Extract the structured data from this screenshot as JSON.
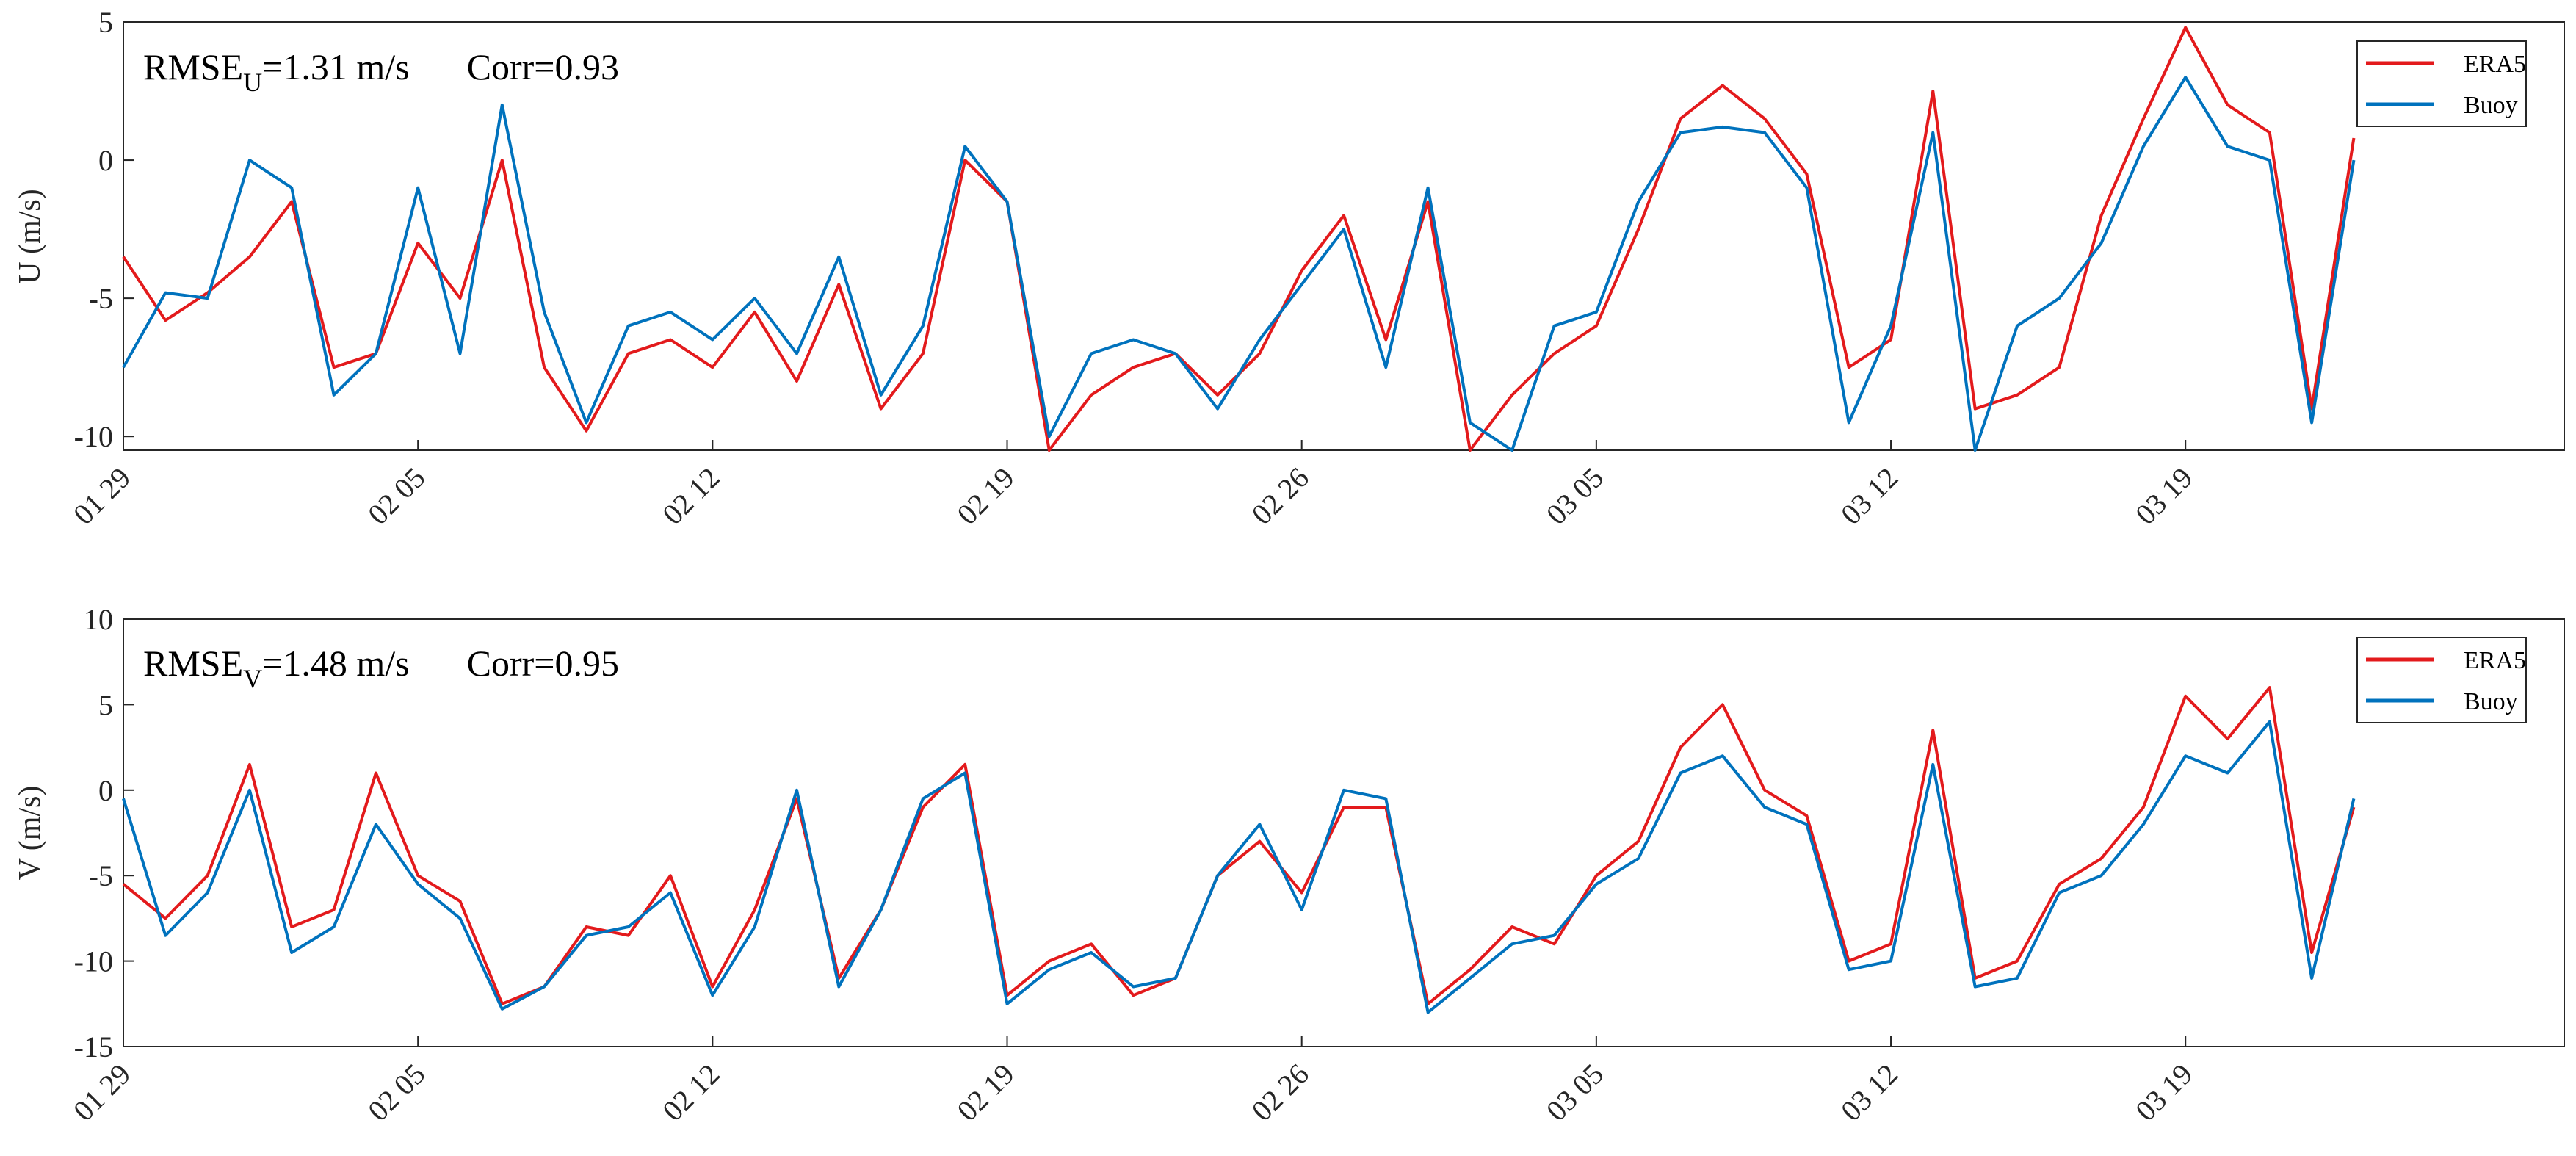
{
  "colors": {
    "era5": "#e31a1c",
    "buoy": "#0072bd"
  },
  "chart_data": [
    {
      "type": "line",
      "ylabel": "U (m/s)",
      "ylim": [
        -10.5,
        5
      ],
      "yticks": [
        -10,
        -5,
        0,
        5
      ],
      "x_date_range": [
        "01-29",
        "03-28"
      ],
      "xticks": [
        {
          "date": "01-29",
          "label": "01 29"
        },
        {
          "date": "02-05",
          "label": "02 05"
        },
        {
          "date": "02-12",
          "label": "02 12"
        },
        {
          "date": "02-19",
          "label": "02 19"
        },
        {
          "date": "02-26",
          "label": "02 26"
        },
        {
          "date": "03-05",
          "label": "03 05"
        },
        {
          "date": "03-12",
          "label": "03 12"
        },
        {
          "date": "03-19",
          "label": "03 19"
        }
      ],
      "annotation": {
        "rmse_prefix": "RMSE",
        "rmse_sub": "U",
        "rmse_value": "=1.31 m/s",
        "corr": "Corr=0.93"
      },
      "legend_placement": "top-right",
      "series": [
        {
          "name": "ERA5",
          "color_key": "era5",
          "x": [
            "01-29",
            "01-30",
            "01-31",
            "02-01",
            "02-02",
            "02-03",
            "02-04",
            "02-05",
            "02-06",
            "02-07",
            "02-08",
            "02-09",
            "02-10",
            "02-11",
            "02-12",
            "02-13",
            "02-14",
            "02-15",
            "02-16",
            "02-17",
            "02-18",
            "02-19",
            "02-20",
            "02-21",
            "02-22",
            "02-23",
            "02-24",
            "02-25",
            "02-26",
            "02-27",
            "02-28",
            "03-01",
            "03-02",
            "03-03",
            "03-04",
            "03-05",
            "03-06",
            "03-07",
            "03-08",
            "03-09",
            "03-10",
            "03-11",
            "03-12",
            "03-13",
            "03-14",
            "03-15",
            "03-16",
            "03-17",
            "03-18",
            "03-19",
            "03-20",
            "03-21",
            "03-22",
            "03-23"
          ],
          "y": [
            -3.5,
            -5.8,
            -4.8,
            -3.5,
            -1.5,
            -7.5,
            -7,
            -3,
            -5,
            0,
            -7.5,
            -9.8,
            -7,
            -6.5,
            -7.5,
            -5.5,
            -8,
            -4.5,
            -9,
            -7,
            0,
            -1.5,
            -10.5,
            -8.5,
            -7.5,
            -7,
            -8.5,
            -7,
            -4,
            -2,
            -6.5,
            -1.5,
            -10.5,
            -8.5,
            -7,
            -6,
            -2.5,
            1.5,
            2.7,
            1.5,
            -0.5,
            -7.5,
            -6.5,
            2.5,
            -9,
            -8.5,
            -7.5,
            -2,
            1.5,
            4.8,
            2,
            1,
            -9,
            0.8
          ]
        },
        {
          "name": "Buoy",
          "color_key": "buoy",
          "x": [
            "01-29",
            "01-30",
            "01-31",
            "02-01",
            "02-02",
            "02-03",
            "02-04",
            "02-05",
            "02-06",
            "02-07",
            "02-08",
            "02-09",
            "02-10",
            "02-11",
            "02-12",
            "02-13",
            "02-14",
            "02-15",
            "02-16",
            "02-17",
            "02-18",
            "02-19",
            "02-20",
            "02-21",
            "02-22",
            "02-23",
            "02-24",
            "02-25",
            "02-26",
            "02-27",
            "02-28",
            "03-01",
            "03-02",
            "03-03",
            "03-04",
            "03-05",
            "03-06",
            "03-07",
            "03-08",
            "03-09",
            "03-10",
            "03-11",
            "03-12",
            "03-13",
            "03-14",
            "03-15",
            "03-16",
            "03-17",
            "03-18",
            "03-19",
            "03-20",
            "03-21",
            "03-22",
            "03-23"
          ],
          "y": [
            -7.5,
            -4.8,
            -5,
            0,
            -1,
            -8.5,
            -7,
            -1,
            -7,
            2,
            -5.5,
            -9.5,
            -6,
            -5.5,
            -6.5,
            -5,
            -7,
            -3.5,
            -8.5,
            -6,
            0.5,
            -1.5,
            -10,
            -7,
            -6.5,
            -7,
            -9,
            -6.5,
            -4.5,
            -2.5,
            -7.5,
            -1,
            -9.5,
            -10.5,
            -6,
            -5.5,
            -1.5,
            1,
            1.2,
            1,
            -1,
            -9.5,
            -6,
            1,
            -10.5,
            -6,
            -5,
            -3,
            0.5,
            3,
            0.5,
            0,
            -9.5,
            0
          ]
        }
      ]
    },
    {
      "type": "line",
      "ylabel": "V (m/s)",
      "ylim": [
        -15,
        10
      ],
      "yticks": [
        -15,
        -10,
        -5,
        0,
        5,
        10
      ],
      "x_date_range": [
        "01-29",
        "03-28"
      ],
      "xticks": [
        {
          "date": "01-29",
          "label": "01 29"
        },
        {
          "date": "02-05",
          "label": "02 05"
        },
        {
          "date": "02-12",
          "label": "02 12"
        },
        {
          "date": "02-19",
          "label": "02 19"
        },
        {
          "date": "02-26",
          "label": "02 26"
        },
        {
          "date": "03-05",
          "label": "03 05"
        },
        {
          "date": "03-12",
          "label": "03 12"
        },
        {
          "date": "03-19",
          "label": "03 19"
        }
      ],
      "annotation": {
        "rmse_prefix": "RMSE",
        "rmse_sub": "V",
        "rmse_value": "=1.48 m/s",
        "corr": "Corr=0.95"
      },
      "legend_placement": "top-right",
      "series": [
        {
          "name": "ERA5",
          "color_key": "era5",
          "x": [
            "01-29",
            "01-30",
            "01-31",
            "02-01",
            "02-02",
            "02-03",
            "02-04",
            "02-05",
            "02-06",
            "02-07",
            "02-08",
            "02-09",
            "02-10",
            "02-11",
            "02-12",
            "02-13",
            "02-14",
            "02-15",
            "02-16",
            "02-17",
            "02-18",
            "02-19",
            "02-20",
            "02-21",
            "02-22",
            "02-23",
            "02-24",
            "02-25",
            "02-26",
            "02-27",
            "02-28",
            "03-01",
            "03-02",
            "03-03",
            "03-04",
            "03-05",
            "03-06",
            "03-07",
            "03-08",
            "03-09",
            "03-10",
            "03-11",
            "03-12",
            "03-13",
            "03-14",
            "03-15",
            "03-16",
            "03-17",
            "03-18",
            "03-19",
            "03-20",
            "03-21",
            "03-22",
            "03-23"
          ],
          "y": [
            -5.5,
            -7.5,
            -5,
            1.5,
            -8,
            -7,
            1,
            -5,
            -6.5,
            -12.5,
            -11.5,
            -8,
            -8.5,
            -5,
            -11.5,
            -7,
            -0.5,
            -11,
            -7,
            -1,
            1.5,
            -12,
            -10,
            -9,
            -12,
            -11,
            -5,
            -3,
            -6,
            -1,
            -1,
            -12.5,
            -10.5,
            -8,
            -9,
            -5,
            -3,
            2.5,
            5,
            0,
            -1.5,
            -10,
            -9,
            3.5,
            -11,
            -10,
            -5.5,
            -4,
            -1,
            5.5,
            3,
            6,
            -9.5,
            -1
          ]
        },
        {
          "name": "Buoy",
          "color_key": "buoy",
          "x": [
            "01-29",
            "01-30",
            "01-31",
            "02-01",
            "02-02",
            "02-03",
            "02-04",
            "02-05",
            "02-06",
            "02-07",
            "02-08",
            "02-09",
            "02-10",
            "02-11",
            "02-12",
            "02-13",
            "02-14",
            "02-15",
            "02-16",
            "02-17",
            "02-18",
            "02-19",
            "02-20",
            "02-21",
            "02-22",
            "02-23",
            "02-24",
            "02-25",
            "02-26",
            "02-27",
            "02-28",
            "03-01",
            "03-02",
            "03-03",
            "03-04",
            "03-05",
            "03-06",
            "03-07",
            "03-08",
            "03-09",
            "03-10",
            "03-11",
            "03-12",
            "03-13",
            "03-14",
            "03-15",
            "03-16",
            "03-17",
            "03-18",
            "03-19",
            "03-20",
            "03-21",
            "03-22",
            "03-23"
          ],
          "y": [
            -0.5,
            -8.5,
            -6,
            0,
            -9.5,
            -8,
            -2,
            -5.5,
            -7.5,
            -12.8,
            -11.5,
            -8.5,
            -8,
            -6,
            -12,
            -8,
            0,
            -11.5,
            -7,
            -0.5,
            1,
            -12.5,
            -10.5,
            -9.5,
            -11.5,
            -11,
            -5,
            -2,
            -7,
            0,
            -0.5,
            -13,
            -11,
            -9,
            -8.5,
            -5.5,
            -4,
            1,
            2,
            -1,
            -2,
            -10.5,
            -10,
            1.5,
            -11.5,
            -11,
            -6,
            -5,
            -2,
            2,
            1,
            4,
            -11,
            -0.5
          ]
        }
      ]
    }
  ]
}
